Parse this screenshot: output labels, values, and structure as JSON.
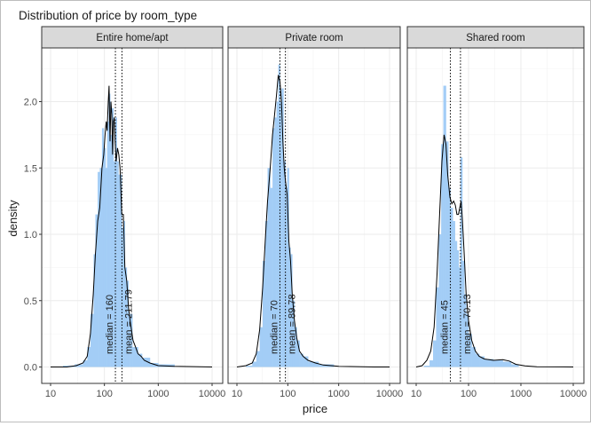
{
  "chart_data": {
    "type": "histogram-density-facets",
    "title": "Distribution of price by room_type",
    "xlabel": "price",
    "ylabel": "density",
    "x_scale": "log10",
    "xlim": [
      10,
      10000
    ],
    "ylim": [
      0,
      2.35
    ],
    "x_ticks": [
      10,
      100,
      1000,
      10000
    ],
    "x_tick_labels": [
      "10",
      "100",
      "1000",
      "10000"
    ],
    "y_ticks": [
      0.0,
      0.5,
      1.0,
      1.5,
      2.0
    ],
    "y_tick_labels": [
      "0.0",
      "0.5",
      "1.0",
      "1.5",
      "2.0"
    ],
    "grid": true,
    "colors": {
      "bar_fill": "#a3cdf6",
      "density_line": "#000000",
      "strip_fill": "#d9d9d9",
      "grid": "#ebebeb",
      "panel_border": "#333333"
    },
    "facets": [
      {
        "label": "Entire home/apt",
        "median": 160,
        "mean": 211.79,
        "median_text": "median = 160",
        "mean_text": "mean = 211.79",
        "histogram": [
          [
            10,
            0
          ],
          [
            17,
            0.01
          ],
          [
            28,
            0.02
          ],
          [
            40,
            0.05
          ],
          [
            48,
            0.15
          ],
          [
            55,
            0.4
          ],
          [
            63,
            0.85
          ],
          [
            68,
            1.15
          ],
          [
            75,
            1.47
          ],
          [
            82,
            1.5
          ],
          [
            90,
            1.8
          ],
          [
            97,
            1.65
          ],
          [
            105,
            1.5
          ],
          [
            112,
            1.85
          ],
          [
            120,
            2.06
          ],
          [
            128,
            1.75
          ],
          [
            137,
            1.95
          ],
          [
            147,
            1.55
          ],
          [
            158,
            1.88
          ],
          [
            170,
            1.55
          ],
          [
            182,
            1.45
          ],
          [
            195,
            1.45
          ],
          [
            210,
            1.05
          ],
          [
            225,
            1.1
          ],
          [
            240,
            0.75
          ],
          [
            260,
            0.65
          ],
          [
            280,
            0.4
          ],
          [
            300,
            0.4
          ],
          [
            330,
            0.15
          ],
          [
            360,
            0.15
          ],
          [
            420,
            0.1
          ],
          [
            500,
            0.07
          ],
          [
            700,
            0.03
          ],
          [
            1000,
            0.02
          ],
          [
            2000,
            0.01
          ]
        ],
        "density": [
          [
            10,
            0
          ],
          [
            20,
            0
          ],
          [
            30,
            0.01
          ],
          [
            40,
            0.03
          ],
          [
            48,
            0.08
          ],
          [
            55,
            0.25
          ],
          [
            62,
            0.55
          ],
          [
            68,
            0.85
          ],
          [
            75,
            1.1
          ],
          [
            82,
            1.2
          ],
          [
            90,
            1.5
          ],
          [
            97,
            1.6
          ],
          [
            103,
            1.75
          ],
          [
            108,
            1.85
          ],
          [
            112,
            1.78
          ],
          [
            118,
            2.0
          ],
          [
            122,
            2.12
          ],
          [
            127,
            1.7
          ],
          [
            132,
            2.0
          ],
          [
            137,
            1.9
          ],
          [
            142,
            1.6
          ],
          [
            147,
            1.85
          ],
          [
            152,
            1.88
          ],
          [
            158,
            1.7
          ],
          [
            165,
            1.55
          ],
          [
            175,
            1.65
          ],
          [
            185,
            1.6
          ],
          [
            195,
            1.5
          ],
          [
            210,
            1.15
          ],
          [
            225,
            1.15
          ],
          [
            240,
            0.75
          ],
          [
            260,
            0.65
          ],
          [
            280,
            0.45
          ],
          [
            300,
            0.35
          ],
          [
            340,
            0.2
          ],
          [
            380,
            0.15
          ],
          [
            420,
            0.1
          ],
          [
            480,
            0.08
          ],
          [
            550,
            0.05
          ],
          [
            700,
            0.03
          ],
          [
            1000,
            0.01
          ],
          [
            2000,
            0.005
          ],
          [
            10000,
            0
          ]
        ]
      },
      {
        "label": "Private room",
        "median": 70,
        "mean": 89.78,
        "median_text": "median = 70",
        "mean_text": "mean = 89.78",
        "histogram": [
          [
            10,
            0
          ],
          [
            15,
            0.01
          ],
          [
            20,
            0.04
          ],
          [
            24,
            0.12
          ],
          [
            28,
            0.3
          ],
          [
            32,
            0.8
          ],
          [
            36,
            1.1
          ],
          [
            40,
            1.5
          ],
          [
            45,
            1.35
          ],
          [
            50,
            1.8
          ],
          [
            55,
            1.88
          ],
          [
            60,
            2.0
          ],
          [
            65,
            2.28
          ],
          [
            70,
            2.0
          ],
          [
            75,
            2.1
          ],
          [
            82,
            1.55
          ],
          [
            90,
            1.35
          ],
          [
            97,
            1.5
          ],
          [
            105,
            0.9
          ],
          [
            113,
            0.85
          ],
          [
            122,
            0.5
          ],
          [
            135,
            0.3
          ],
          [
            150,
            0.2
          ],
          [
            170,
            0.1
          ],
          [
            200,
            0.08
          ],
          [
            250,
            0.04
          ],
          [
            400,
            0.02
          ],
          [
            800,
            0.01
          ]
        ],
        "density": [
          [
            10,
            0
          ],
          [
            15,
            0.01
          ],
          [
            20,
            0.03
          ],
          [
            24,
            0.1
          ],
          [
            28,
            0.28
          ],
          [
            32,
            0.6
          ],
          [
            36,
            0.95
          ],
          [
            40,
            1.25
          ],
          [
            45,
            1.5
          ],
          [
            50,
            1.75
          ],
          [
            55,
            1.9
          ],
          [
            60,
            2.05
          ],
          [
            65,
            2.2
          ],
          [
            70,
            2.15
          ],
          [
            75,
            2.0
          ],
          [
            80,
            1.7
          ],
          [
            85,
            1.5
          ],
          [
            90,
            1.4
          ],
          [
            97,
            1.3
          ],
          [
            105,
            0.95
          ],
          [
            113,
            0.8
          ],
          [
            122,
            0.55
          ],
          [
            135,
            0.35
          ],
          [
            150,
            0.22
          ],
          [
            170,
            0.12
          ],
          [
            200,
            0.08
          ],
          [
            250,
            0.05
          ],
          [
            350,
            0.03
          ],
          [
            500,
            0.015
          ],
          [
            1000,
            0.005
          ],
          [
            5000,
            0
          ],
          [
            10000,
            0
          ]
        ]
      },
      {
        "label": "Shared room",
        "median": 45,
        "mean": 70.13,
        "median_text": "median = 45",
        "mean_text": "mean = 70.13",
        "histogram": [
          [
            10,
            0
          ],
          [
            14,
            0.01
          ],
          [
            18,
            0.05
          ],
          [
            21,
            0.2
          ],
          [
            24,
            0.6
          ],
          [
            27,
            1.0
          ],
          [
            30,
            1.68
          ],
          [
            33,
            2.12
          ],
          [
            37,
            1.7
          ],
          [
            41,
            1.35
          ],
          [
            45,
            1.2
          ],
          [
            50,
            1.1
          ],
          [
            55,
            0.95
          ],
          [
            60,
            0.88
          ],
          [
            65,
            0.75
          ],
          [
            70,
            1.58
          ],
          [
            76,
            0.8
          ],
          [
            83,
            0.55
          ],
          [
            90,
            0.4
          ],
          [
            100,
            0.25
          ],
          [
            115,
            0.15
          ],
          [
            135,
            0.1
          ],
          [
            160,
            0.08
          ],
          [
            200,
            0.06
          ],
          [
            300,
            0.05
          ],
          [
            450,
            0.04
          ],
          [
            650,
            0.02
          ],
          [
            900,
            0.01
          ]
        ],
        "density": [
          [
            10,
            0
          ],
          [
            13,
            0.01
          ],
          [
            16,
            0.05
          ],
          [
            19,
            0.12
          ],
          [
            22,
            0.3
          ],
          [
            25,
            0.7
          ],
          [
            28,
            1.15
          ],
          [
            31,
            1.55
          ],
          [
            34,
            1.75
          ],
          [
            37,
            1.68
          ],
          [
            40,
            1.45
          ],
          [
            44,
            1.28
          ],
          [
            48,
            1.23
          ],
          [
            52,
            1.25
          ],
          [
            56,
            1.22
          ],
          [
            60,
            1.15
          ],
          [
            64,
            1.15
          ],
          [
            68,
            1.2
          ],
          [
            72,
            1.25
          ],
          [
            76,
            1.12
          ],
          [
            82,
            0.88
          ],
          [
            90,
            0.55
          ],
          [
            100,
            0.35
          ],
          [
            115,
            0.2
          ],
          [
            135,
            0.12
          ],
          [
            160,
            0.08
          ],
          [
            200,
            0.06
          ],
          [
            300,
            0.05
          ],
          [
            450,
            0.055
          ],
          [
            600,
            0.045
          ],
          [
            800,
            0.02
          ],
          [
            1200,
            0.008
          ],
          [
            2000,
            0.002
          ],
          [
            10000,
            0
          ]
        ]
      }
    ]
  }
}
